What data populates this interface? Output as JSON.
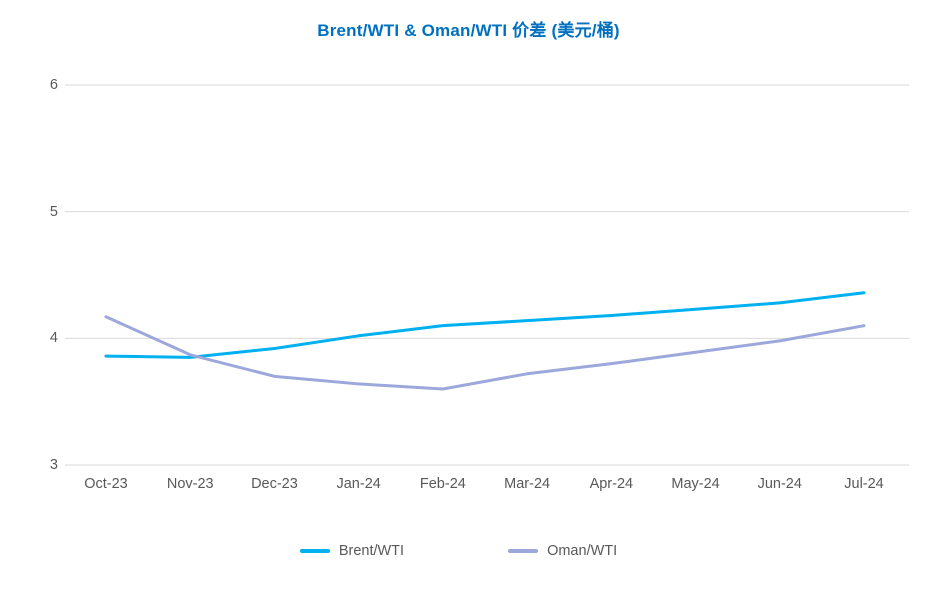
{
  "title": "Brent/WTI & Oman/WTI 价差 (美元/桶)",
  "colors": {
    "title": "#0070C0",
    "axis_text": "#595959",
    "gridline": "#D9D9D9",
    "background": "#FFFFFF",
    "brent": "#00B0F0",
    "oman": "#9CA7DB"
  },
  "legend": {
    "items": [
      {
        "label": "Brent/WTI",
        "color": "#00B0F0"
      },
      {
        "label": "Oman/WTI",
        "color": "#9CA7DB"
      }
    ]
  },
  "chart_data": {
    "type": "line",
    "title": "Brent/WTI & Oman/WTI 价差 (美元/桶)",
    "categories": [
      "Oct-23",
      "Nov-23",
      "Dec-23",
      "Jan-24",
      "Feb-24",
      "Mar-24",
      "Apr-24",
      "May-24",
      "Jun-24",
      "Jul-24"
    ],
    "series": [
      {
        "name": "Brent/WTI",
        "color": "#00B0F0",
        "values": [
          3.86,
          3.85,
          3.92,
          4.02,
          4.1,
          4.14,
          4.18,
          4.23,
          4.28,
          4.36
        ]
      },
      {
        "name": "Oman/WTI",
        "color": "#9CA7DB",
        "values": [
          4.17,
          3.87,
          3.7,
          3.64,
          3.6,
          3.72,
          3.8,
          3.89,
          3.98,
          4.1
        ]
      }
    ],
    "xlabel": "",
    "ylabel": "",
    "ylim": [
      3,
      6
    ],
    "yticks": [
      3,
      4,
      5,
      6
    ],
    "grid": true,
    "legend_position": "bottom"
  }
}
